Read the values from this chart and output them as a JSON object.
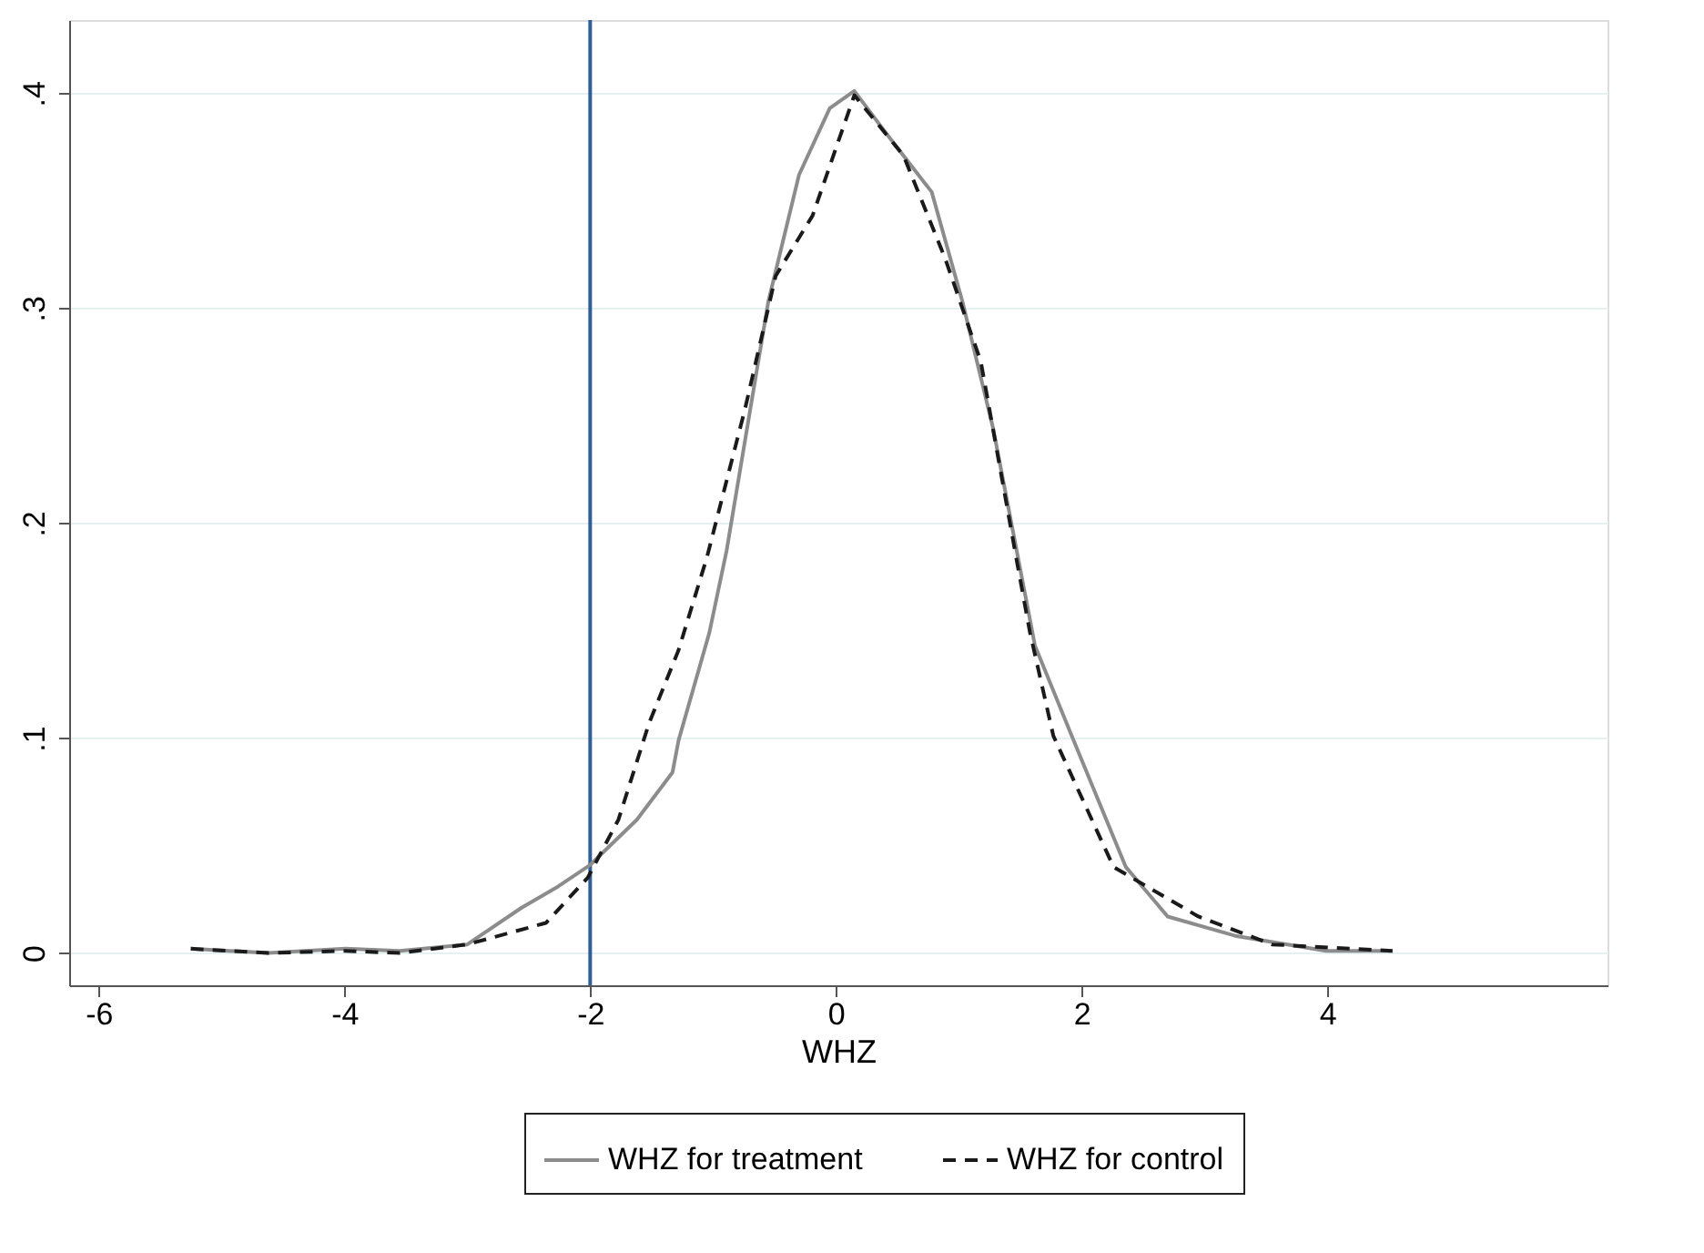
{
  "chart_data": {
    "type": "line",
    "xlabel": "WHZ",
    "xlim": [
      -6.24,
      6.28
    ],
    "xticks": [
      -6,
      -4,
      -2,
      0,
      2,
      4
    ],
    "ylim": [
      -0.015,
      0.434
    ],
    "yticks": [
      {
        "value": 0,
        "label": "0"
      },
      {
        "value": 0.1,
        "label": ".1"
      },
      {
        "value": 0.2,
        "label": ".2"
      },
      {
        "value": 0.3,
        "label": ".3"
      },
      {
        "value": 0.4,
        "label": ".4"
      }
    ],
    "grid": "y",
    "legend": "bottom",
    "marker": "none",
    "ref_lines": [
      {
        "axis": "x",
        "value": -2,
        "label": null,
        "color": "#2f5f98",
        "line_style": "solid"
      }
    ],
    "series": [
      {
        "name": "WHZ for treatment",
        "color": "#8c8c8c",
        "line_style": "solid",
        "x": [
          -5.25,
          -4.62,
          -3.99,
          -3.55,
          -3.0,
          -2.56,
          -2.26,
          -2.0,
          -1.62,
          -1.33,
          -1.28,
          -1.03,
          -0.89,
          -0.55,
          -0.3,
          -0.05,
          0.15,
          0.4,
          0.78,
          1.03,
          1.28,
          1.62,
          1.92,
          2.36,
          2.7,
          3.25,
          3.99,
          4.53
        ],
        "values": [
          0.002,
          0.0,
          0.002,
          0.001,
          0.004,
          0.021,
          0.031,
          0.041,
          0.062,
          0.084,
          0.099,
          0.149,
          0.187,
          0.303,
          0.362,
          0.393,
          0.401,
          0.382,
          0.354,
          0.303,
          0.244,
          0.143,
          0.101,
          0.04,
          0.017,
          0.008,
          0.001,
          0.001
        ]
      },
      {
        "name": "WHZ for control",
        "color": "#1a1a1a",
        "line_style": "dashed",
        "x": [
          -5.25,
          -4.62,
          -3.99,
          -3.55,
          -3.0,
          -2.36,
          -2.02,
          -1.77,
          -1.52,
          -1.28,
          -1.05,
          -0.74,
          -0.49,
          -0.19,
          0.15,
          0.55,
          0.89,
          1.18,
          1.48,
          1.58,
          1.77,
          2.26,
          2.95,
          3.55,
          4.53
        ],
        "values": [
          0.002,
          0.0,
          0.001,
          0.0,
          0.004,
          0.014,
          0.035,
          0.062,
          0.107,
          0.141,
          0.184,
          0.253,
          0.315,
          0.343,
          0.399,
          0.371,
          0.323,
          0.275,
          0.18,
          0.149,
          0.101,
          0.04,
          0.017,
          0.004,
          0.001
        ]
      }
    ]
  }
}
